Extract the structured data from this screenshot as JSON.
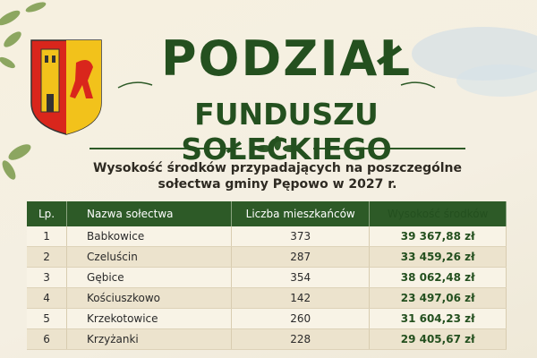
{
  "header": {
    "title": "PODZIAŁ",
    "title_line2": "FUNDUSZU SOŁECKIEGO",
    "subtitle_line1": "Wysokość środków przypadających na poszczególne",
    "subtitle_line2": "sołectwa gminy Pępowo w 2027 r."
  },
  "table": {
    "columns": [
      "Lp.",
      "Nazwa sołectwa",
      "Liczba mieszkańców",
      "Wysokość środków"
    ],
    "rows": [
      [
        "1",
        "Babkowice",
        "373",
        "39 367,88 zł"
      ],
      [
        "2",
        "Czeluścin",
        "287",
        "33 459,26 zł"
      ],
      [
        "3",
        "Gębice",
        "354",
        "38 062,48 zł"
      ],
      [
        "4",
        "Kościuszkowo",
        "142",
        "23 497,06 zł"
      ],
      [
        "5",
        "Krzekotowice",
        "260",
        "31 604,23 zł"
      ],
      [
        "6",
        "Krzyżanki",
        "228",
        "29 405,67 zł"
      ]
    ]
  }
}
